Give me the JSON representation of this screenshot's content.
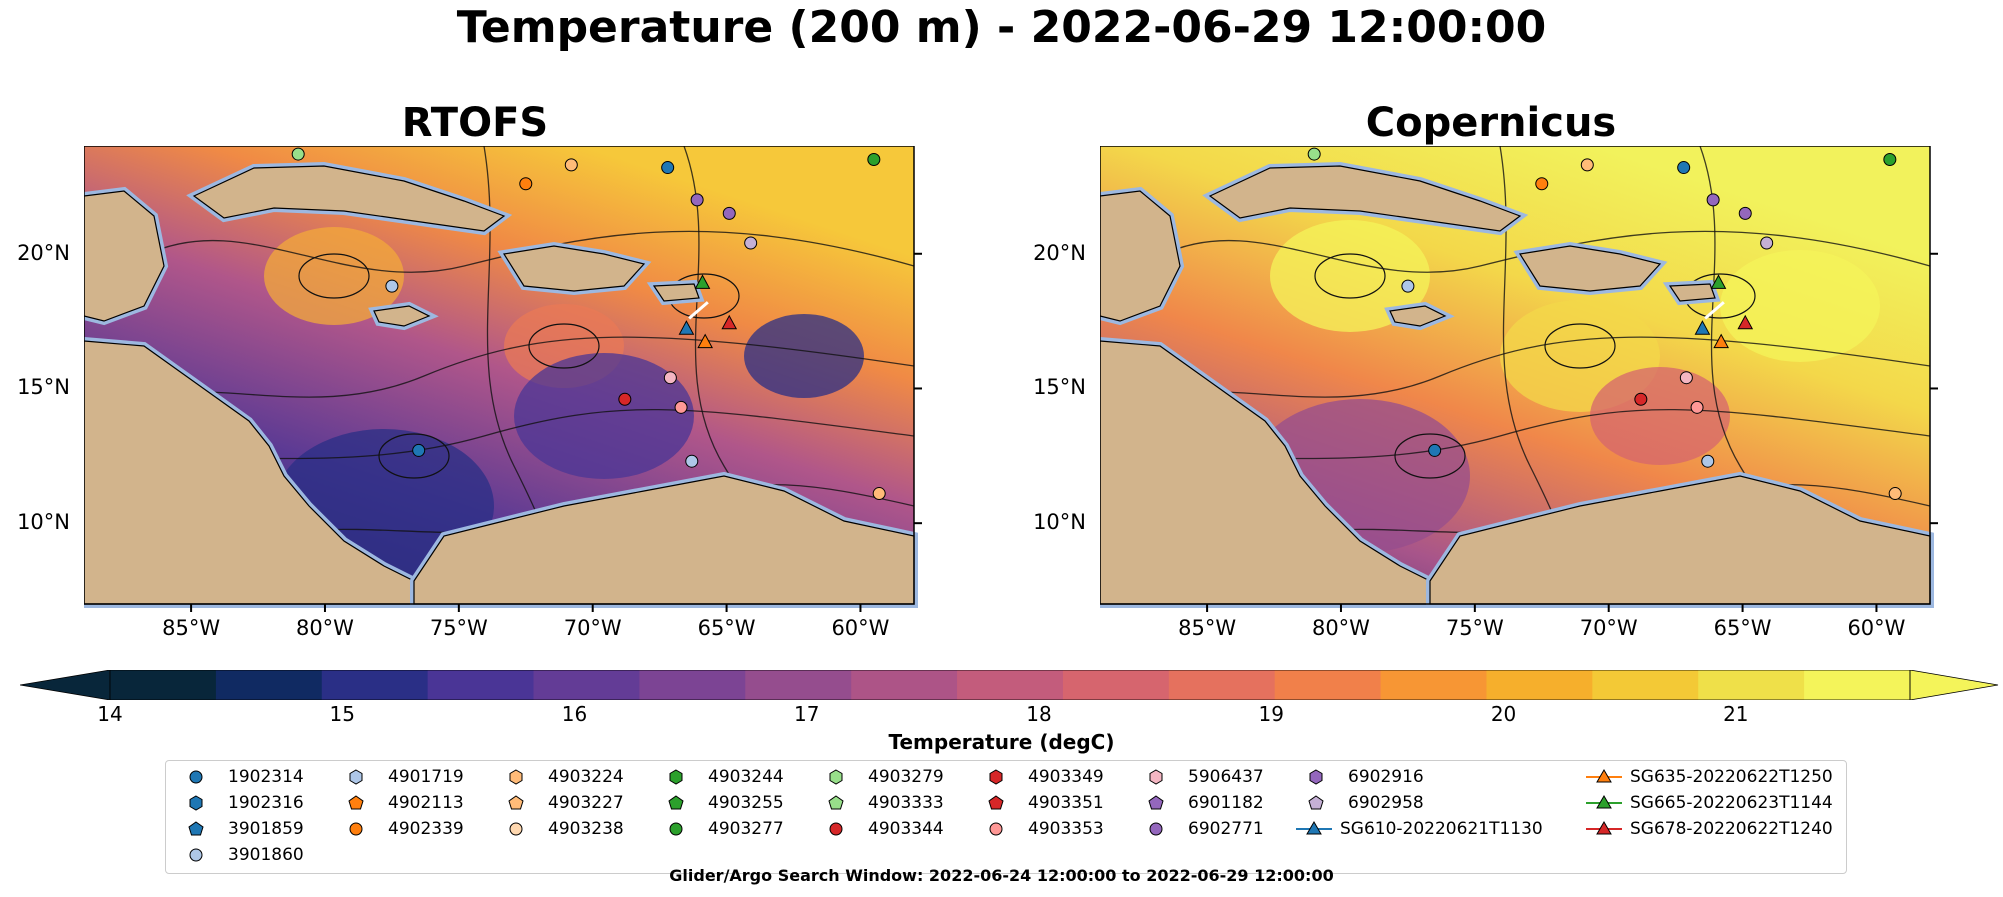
{
  "title": "Temperature (200 m) - 2022-06-29 12:00:00",
  "panels": [
    {
      "title": "RTOFS",
      "theme": "cool"
    },
    {
      "title": "Copernicus",
      "theme": "warm"
    }
  ],
  "axes": {
    "lon_ticks": [
      "85°W",
      "80°W",
      "75°W",
      "70°W",
      "65°W",
      "60°W"
    ],
    "lat_ticks": [
      "20°N",
      "15°N",
      "10°N"
    ]
  },
  "colorbar": {
    "label": "Temperature (degC)",
    "ticks": [
      "14",
      "15",
      "16",
      "17",
      "18",
      "19",
      "20",
      "21"
    ],
    "range": [
      14,
      21.75
    ],
    "colors": [
      "#08263a",
      "#102a62",
      "#2a2f86",
      "#4a3596",
      "#633c96",
      "#7c4494",
      "#954d8e",
      "#ad5487",
      "#c35c7c",
      "#d6656e",
      "#e5715e",
      "#f1804a",
      "#f79634",
      "#f6af2c",
      "#f3c936",
      "#efe049",
      "#f4f45a"
    ]
  },
  "legend": {
    "colors": {
      "blue": "#1f77b4",
      "orange": "#ff7f0e",
      "green": "#2ca02c",
      "red": "#d62728",
      "lightblue": "#aec7e8",
      "lightorange": "#ffbb78",
      "lightgreen": "#98df8a",
      "pink": "#f4b6c2",
      "purple": "#9467bd",
      "lightpurple": "#c5b0d5",
      "salmon": "#ff9896",
      "peach": "#ffd8b0"
    },
    "items": [
      {
        "label": "1902314",
        "marker": "circle",
        "color": "blue"
      },
      {
        "label": "1902316",
        "marker": "hexagon",
        "color": "blue"
      },
      {
        "label": "3901859",
        "marker": "pentagon",
        "color": "blue"
      },
      {
        "label": "3901860",
        "marker": "circle",
        "color": "lightblue"
      },
      {
        "label": "4901719",
        "marker": "hexagon",
        "color": "lightblue"
      },
      {
        "label": "4902113",
        "marker": "pentagon",
        "color": "orange"
      },
      {
        "label": "4902339",
        "marker": "circle",
        "color": "orange"
      },
      {
        "label": "4903224",
        "marker": "hexagon",
        "color": "lightorange"
      },
      {
        "label": "4903227",
        "marker": "pentagon",
        "color": "lightorange"
      },
      {
        "label": "4903238",
        "marker": "circle",
        "color": "peach"
      },
      {
        "label": "4903244",
        "marker": "hexagon",
        "color": "green"
      },
      {
        "label": "4903255",
        "marker": "pentagon",
        "color": "green"
      },
      {
        "label": "4903277",
        "marker": "circle",
        "color": "green"
      },
      {
        "label": "4903279",
        "marker": "hexagon",
        "color": "lightgreen"
      },
      {
        "label": "4903333",
        "marker": "pentagon",
        "color": "lightgreen"
      },
      {
        "label": "4903344",
        "marker": "circle",
        "color": "red"
      },
      {
        "label": "4903349",
        "marker": "hexagon",
        "color": "red"
      },
      {
        "label": "4903351",
        "marker": "pentagon",
        "color": "red"
      },
      {
        "label": "4903353",
        "marker": "circle",
        "color": "salmon"
      },
      {
        "label": "5906437",
        "marker": "hexagon",
        "color": "pink"
      },
      {
        "label": "6901182",
        "marker": "pentagon",
        "color": "purple"
      },
      {
        "label": "6902771",
        "marker": "circle",
        "color": "purple"
      },
      {
        "label": "6902916",
        "marker": "hexagon",
        "color": "purple"
      },
      {
        "label": "6902958",
        "marker": "pentagon",
        "color": "lightpurple"
      },
      {
        "label": "SG610-20220621T1130",
        "marker": "triangle-line",
        "color": "blue"
      },
      {
        "label": "SG635-20220622T1250",
        "marker": "triangle-line",
        "color": "orange"
      },
      {
        "label": "SG665-20220623T1144",
        "marker": "triangle-line",
        "color": "green"
      },
      {
        "label": "SG678-20220622T1240",
        "marker": "triangle-line",
        "color": "red"
      }
    ]
  },
  "footnote": "Glider/Argo Search Window: 2022-06-24 12:00:00 to 2022-06-29 12:00:00"
}
